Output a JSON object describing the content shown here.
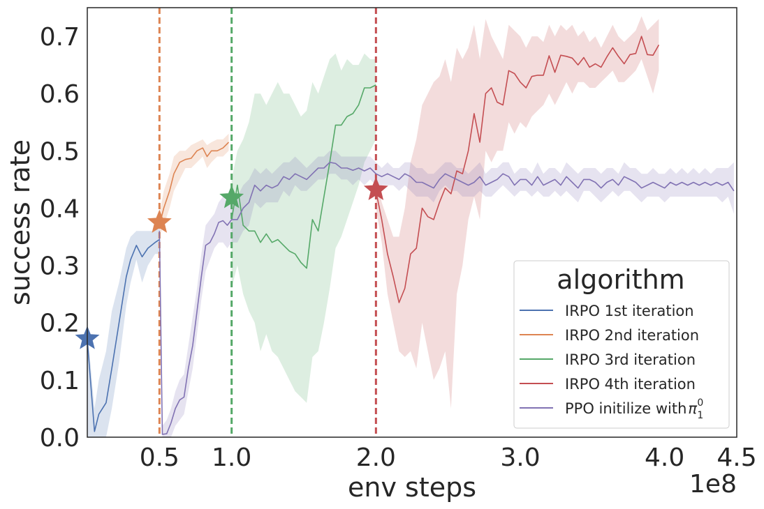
{
  "chart_data": {
    "type": "line",
    "xlabel": "env steps",
    "ylabel": "success rate",
    "x_scale_label": "1e8",
    "xlim": [
      0.0,
      4.5
    ],
    "ylim": [
      0.0,
      0.75
    ],
    "x_ticks": [
      "0.5",
      "1.0",
      "2.0",
      "3.0",
      "4.0",
      "4.5"
    ],
    "x_tick_values": [
      0.5,
      1.0,
      2.0,
      3.0,
      4.0,
      4.5
    ],
    "y_ticks": [
      "0.0",
      "0.1",
      "0.2",
      "0.3",
      "0.4",
      "0.5",
      "0.6",
      "0.7"
    ],
    "y_tick_values": [
      0.0,
      0.1,
      0.2,
      0.3,
      0.4,
      0.5,
      0.6,
      0.7
    ],
    "grid": false,
    "legend": {
      "title": "algorithm",
      "placement": "lower-right",
      "entries": [
        "IRPO 1st iteration",
        "IRPO 2nd iteration",
        "IRPO 3rd iteration",
        "IRPO 4th iteration",
        "PPO initilize with "
      ]
    },
    "vertical_lines": [
      {
        "x": 0.5,
        "color": "#dd8452"
      },
      {
        "x": 1.0,
        "color": "#55a868"
      },
      {
        "x": 2.0,
        "color": "#c44e52"
      }
    ],
    "markers": [
      {
        "x": 0.0,
        "y": 0.172,
        "color": "#4c72b0"
      },
      {
        "x": 0.5,
        "y": 0.375,
        "color": "#dd8452"
      },
      {
        "x": 1.0,
        "y": 0.418,
        "color": "#55a868"
      },
      {
        "x": 2.0,
        "y": 0.432,
        "color": "#c44e52"
      }
    ],
    "series": [
      {
        "name": "IRPO 1st iteration",
        "color": "#4c72b0",
        "x": [
          0.0,
          0.05,
          0.08,
          0.13,
          0.17,
          0.22,
          0.27,
          0.3,
          0.34,
          0.38,
          0.42,
          0.47,
          0.5
        ],
        "y": [
          0.17,
          0.01,
          0.04,
          0.06,
          0.12,
          0.2,
          0.28,
          0.31,
          0.335,
          0.315,
          0.33,
          0.34,
          0.345
        ],
        "lower": [
          0.0,
          0.0,
          0.0,
          0.0,
          0.05,
          0.13,
          0.23,
          0.27,
          0.31,
          0.27,
          0.3,
          0.32,
          0.32
        ],
        "upper": [
          0.19,
          0.05,
          0.1,
          0.15,
          0.22,
          0.27,
          0.33,
          0.35,
          0.36,
          0.36,
          0.36,
          0.36,
          0.37
        ]
      },
      {
        "name": "IRPO 2nd iteration",
        "color": "#dd8452",
        "x": [
          0.5,
          0.53,
          0.57,
          0.6,
          0.64,
          0.68,
          0.72,
          0.76,
          0.8,
          0.83,
          0.86,
          0.9,
          0.94,
          0.98
        ],
        "y": [
          0.37,
          0.4,
          0.43,
          0.46,
          0.48,
          0.485,
          0.487,
          0.5,
          0.505,
          0.49,
          0.5,
          0.5,
          0.505,
          0.515
        ],
        "lower": [
          0.35,
          0.37,
          0.4,
          0.43,
          0.45,
          0.47,
          0.47,
          0.48,
          0.49,
          0.47,
          0.48,
          0.49,
          0.49,
          0.5
        ],
        "upper": [
          0.39,
          0.43,
          0.46,
          0.49,
          0.5,
          0.5,
          0.51,
          0.515,
          0.52,
          0.51,
          0.515,
          0.52,
          0.52,
          0.53
        ]
      },
      {
        "name": "IRPO 3rd iteration",
        "color": "#55a868",
        "x": [
          1.0,
          1.04,
          1.08,
          1.12,
          1.16,
          1.2,
          1.24,
          1.28,
          1.32,
          1.36,
          1.4,
          1.44,
          1.48,
          1.52,
          1.56,
          1.6,
          1.64,
          1.68,
          1.72,
          1.76,
          1.8,
          1.84,
          1.88,
          1.92,
          1.96,
          2.0
        ],
        "y": [
          0.38,
          0.44,
          0.37,
          0.36,
          0.36,
          0.34,
          0.355,
          0.34,
          0.345,
          0.335,
          0.325,
          0.32,
          0.305,
          0.295,
          0.38,
          0.36,
          0.42,
          0.48,
          0.545,
          0.545,
          0.56,
          0.565,
          0.58,
          0.61,
          0.61,
          0.615
        ],
        "lower": [
          0.26,
          0.3,
          0.25,
          0.22,
          0.2,
          0.15,
          0.18,
          0.15,
          0.14,
          0.12,
          0.1,
          0.08,
          0.07,
          0.06,
          0.14,
          0.15,
          0.2,
          0.26,
          0.33,
          0.35,
          0.38,
          0.41,
          0.44,
          0.48,
          0.5,
          0.52
        ],
        "upper": [
          0.45,
          0.5,
          0.52,
          0.55,
          0.6,
          0.6,
          0.58,
          0.6,
          0.62,
          0.6,
          0.6,
          0.58,
          0.56,
          0.57,
          0.62,
          0.6,
          0.63,
          0.66,
          0.67,
          0.64,
          0.66,
          0.65,
          0.65,
          0.67,
          0.66,
          0.66
        ]
      },
      {
        "name": "IRPO 4th iteration",
        "color": "#c44e52",
        "x": [
          2.0,
          2.04,
          2.08,
          2.12,
          2.16,
          2.2,
          2.24,
          2.28,
          2.32,
          2.36,
          2.4,
          2.44,
          2.48,
          2.52,
          2.56,
          2.6,
          2.64,
          2.68,
          2.72,
          2.76,
          2.8,
          2.84,
          2.88,
          2.92,
          2.96,
          3.0,
          3.04,
          3.08,
          3.12,
          3.16,
          3.2,
          3.24,
          3.28,
          3.32,
          3.36,
          3.4,
          3.44,
          3.48,
          3.52,
          3.56,
          3.6,
          3.64,
          3.68,
          3.72,
          3.76,
          3.8,
          3.84,
          3.88,
          3.92,
          3.96
        ],
        "y": [
          0.43,
          0.38,
          0.32,
          0.28,
          0.235,
          0.26,
          0.32,
          0.33,
          0.4,
          0.385,
          0.38,
          0.41,
          0.435,
          0.425,
          0.465,
          0.46,
          0.5,
          0.565,
          0.515,
          0.6,
          0.61,
          0.585,
          0.58,
          0.64,
          0.635,
          0.62,
          0.61,
          0.63,
          0.632,
          0.632,
          0.666,
          0.637,
          0.667,
          0.665,
          0.662,
          0.65,
          0.663,
          0.646,
          0.652,
          0.646,
          0.664,
          0.68,
          0.665,
          0.652,
          0.668,
          0.67,
          0.7,
          0.668,
          0.667,
          0.685
        ],
        "lower": [
          0.4,
          0.34,
          0.25,
          0.2,
          0.15,
          0.14,
          0.15,
          0.12,
          0.2,
          0.15,
          0.1,
          0.12,
          0.15,
          0.05,
          0.25,
          0.3,
          0.38,
          0.42,
          0.38,
          0.5,
          0.48,
          0.5,
          0.5,
          0.55,
          0.53,
          0.55,
          0.54,
          0.56,
          0.57,
          0.58,
          0.6,
          0.58,
          0.6,
          0.62,
          0.6,
          0.62,
          0.62,
          0.61,
          0.61,
          0.62,
          0.63,
          0.64,
          0.62,
          0.62,
          0.63,
          0.64,
          0.66,
          0.63,
          0.6,
          0.64
        ],
        "upper": [
          0.46,
          0.41,
          0.38,
          0.35,
          0.35,
          0.4,
          0.48,
          0.52,
          0.58,
          0.6,
          0.62,
          0.63,
          0.66,
          0.62,
          0.68,
          0.66,
          0.68,
          0.72,
          0.66,
          0.73,
          0.7,
          0.68,
          0.66,
          0.72,
          0.71,
          0.7,
          0.68,
          0.7,
          0.7,
          0.69,
          0.72,
          0.7,
          0.72,
          0.71,
          0.72,
          0.7,
          0.71,
          0.69,
          0.7,
          0.68,
          0.7,
          0.72,
          0.7,
          0.69,
          0.7,
          0.71,
          0.735,
          0.71,
          0.72,
          0.73
        ]
      },
      {
        "name": "PPO initilize with ",
        "color": "#8172b3",
        "x": [
          0.5,
          0.52,
          0.55,
          0.58,
          0.61,
          0.64,
          0.67,
          0.7,
          0.73,
          0.76,
          0.79,
          0.82,
          0.85,
          0.88,
          0.91,
          0.94,
          0.97,
          1.0,
          1.04,
          1.08,
          1.12,
          1.16,
          1.2,
          1.24,
          1.28,
          1.32,
          1.36,
          1.4,
          1.44,
          1.48,
          1.52,
          1.56,
          1.6,
          1.64,
          1.68,
          1.72,
          1.76,
          1.8,
          1.84,
          1.88,
          1.92,
          1.96,
          2.0,
          2.04,
          2.08,
          2.12,
          2.16,
          2.2,
          2.24,
          2.28,
          2.32,
          2.36,
          2.4,
          2.44,
          2.48,
          2.52,
          2.56,
          2.6,
          2.64,
          2.68,
          2.72,
          2.76,
          2.8,
          2.84,
          2.88,
          2.92,
          2.96,
          3.0,
          3.04,
          3.08,
          3.12,
          3.16,
          3.2,
          3.24,
          3.28,
          3.32,
          3.36,
          3.4,
          3.44,
          3.48,
          3.52,
          3.56,
          3.6,
          3.64,
          3.68,
          3.72,
          3.76,
          3.8,
          3.84,
          3.88,
          3.92,
          3.96,
          4.0,
          4.04,
          4.08,
          4.12,
          4.16,
          4.2,
          4.24,
          4.28,
          4.32,
          4.36,
          4.4,
          4.44,
          4.48
        ],
        "y": [
          0.36,
          0.005,
          0.006,
          0.025,
          0.05,
          0.065,
          0.07,
          0.12,
          0.16,
          0.22,
          0.28,
          0.335,
          0.34,
          0.355,
          0.375,
          0.378,
          0.37,
          0.38,
          0.38,
          0.4,
          0.41,
          0.44,
          0.43,
          0.44,
          0.435,
          0.44,
          0.455,
          0.45,
          0.46,
          0.455,
          0.45,
          0.46,
          0.47,
          0.47,
          0.48,
          0.478,
          0.47,
          0.47,
          0.466,
          0.47,
          0.465,
          0.47,
          0.46,
          0.455,
          0.46,
          0.455,
          0.45,
          0.46,
          0.455,
          0.445,
          0.445,
          0.44,
          0.435,
          0.45,
          0.46,
          0.455,
          0.45,
          0.445,
          0.44,
          0.445,
          0.455,
          0.44,
          0.445,
          0.45,
          0.46,
          0.455,
          0.44,
          0.45,
          0.45,
          0.44,
          0.455,
          0.44,
          0.445,
          0.45,
          0.44,
          0.455,
          0.445,
          0.435,
          0.45,
          0.45,
          0.445,
          0.435,
          0.445,
          0.45,
          0.44,
          0.455,
          0.45,
          0.445,
          0.435,
          0.44,
          0.445,
          0.44,
          0.435,
          0.445,
          0.44,
          0.445,
          0.44,
          0.445,
          0.44,
          0.445,
          0.44,
          0.445,
          0.44,
          0.445,
          0.43
        ],
        "lower": [
          0.3,
          0.0,
          0.0,
          0.0,
          0.02,
          0.03,
          0.04,
          0.08,
          0.12,
          0.18,
          0.24,
          0.29,
          0.31,
          0.33,
          0.34,
          0.34,
          0.33,
          0.34,
          0.34,
          0.36,
          0.37,
          0.41,
          0.4,
          0.41,
          0.41,
          0.41,
          0.43,
          0.42,
          0.44,
          0.43,
          0.43,
          0.44,
          0.45,
          0.45,
          0.46,
          0.46,
          0.45,
          0.45,
          0.44,
          0.45,
          0.44,
          0.45,
          0.44,
          0.44,
          0.44,
          0.44,
          0.43,
          0.44,
          0.43,
          0.42,
          0.42,
          0.42,
          0.41,
          0.43,
          0.44,
          0.43,
          0.43,
          0.42,
          0.42,
          0.42,
          0.43,
          0.42,
          0.42,
          0.43,
          0.44,
          0.43,
          0.42,
          0.43,
          0.43,
          0.42,
          0.43,
          0.42,
          0.42,
          0.43,
          0.42,
          0.43,
          0.42,
          0.41,
          0.43,
          0.43,
          0.42,
          0.41,
          0.42,
          0.43,
          0.42,
          0.43,
          0.43,
          0.42,
          0.41,
          0.42,
          0.42,
          0.42,
          0.41,
          0.42,
          0.42,
          0.42,
          0.42,
          0.42,
          0.42,
          0.42,
          0.42,
          0.42,
          0.41,
          0.42,
          0.39
        ],
        "upper": [
          0.4,
          0.02,
          0.03,
          0.05,
          0.08,
          0.1,
          0.11,
          0.16,
          0.21,
          0.26,
          0.32,
          0.37,
          0.38,
          0.39,
          0.41,
          0.42,
          0.41,
          0.42,
          0.42,
          0.44,
          0.45,
          0.47,
          0.46,
          0.47,
          0.46,
          0.47,
          0.48,
          0.48,
          0.49,
          0.48,
          0.47,
          0.48,
          0.49,
          0.49,
          0.5,
          0.5,
          0.49,
          0.49,
          0.49,
          0.49,
          0.49,
          0.49,
          0.48,
          0.47,
          0.48,
          0.47,
          0.47,
          0.48,
          0.48,
          0.47,
          0.47,
          0.46,
          0.46,
          0.47,
          0.48,
          0.48,
          0.47,
          0.47,
          0.46,
          0.47,
          0.48,
          0.46,
          0.47,
          0.47,
          0.48,
          0.48,
          0.46,
          0.47,
          0.47,
          0.46,
          0.48,
          0.46,
          0.47,
          0.47,
          0.46,
          0.48,
          0.47,
          0.46,
          0.47,
          0.47,
          0.47,
          0.46,
          0.47,
          0.47,
          0.46,
          0.48,
          0.47,
          0.47,
          0.46,
          0.46,
          0.47,
          0.46,
          0.46,
          0.47,
          0.46,
          0.47,
          0.46,
          0.47,
          0.46,
          0.47,
          0.46,
          0.47,
          0.47,
          0.47,
          0.48
        ]
      }
    ]
  }
}
